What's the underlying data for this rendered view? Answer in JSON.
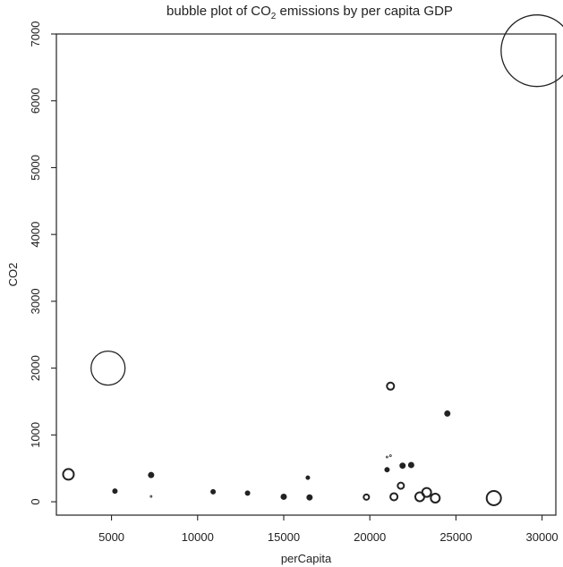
{
  "chart_data": {
    "type": "scatter",
    "title_parts": [
      "bubble plot of CO",
      "2",
      " emissions by per capita GDP"
    ],
    "xlabel": "perCapita",
    "ylabel": "CO2",
    "xlim": [
      1800,
      30800
    ],
    "ylim": [
      -200,
      7000
    ],
    "x_ticks": [
      5000,
      10000,
      15000,
      20000,
      25000,
      30000
    ],
    "y_ticks": [
      0,
      1000,
      2000,
      3000,
      4000,
      5000,
      6000,
      7000
    ],
    "grid": false,
    "legend": "none",
    "points": [
      {
        "x": 2500,
        "y": 410,
        "r": 6
      },
      {
        "x": 4800,
        "y": 2000,
        "r": 19
      },
      {
        "x": 5200,
        "y": 160,
        "r": 2
      },
      {
        "x": 7300,
        "y": 400,
        "r": 2.5
      },
      {
        "x": 7300,
        "y": 80,
        "r": 1
      },
      {
        "x": 10900,
        "y": 150,
        "r": 2
      },
      {
        "x": 12900,
        "y": 130,
        "r": 2
      },
      {
        "x": 15000,
        "y": 75,
        "r": 2.5
      },
      {
        "x": 16400,
        "y": 360,
        "r": 1.5
      },
      {
        "x": 16500,
        "y": 65,
        "r": 2.5
      },
      {
        "x": 19800,
        "y": 70,
        "r": 3
      },
      {
        "x": 21000,
        "y": 480,
        "r": 2
      },
      {
        "x": 21000,
        "y": 670,
        "r": 1
      },
      {
        "x": 21200,
        "y": 690,
        "r": 1
      },
      {
        "x": 21200,
        "y": 1730,
        "r": 4
      },
      {
        "x": 21400,
        "y": 75,
        "r": 4
      },
      {
        "x": 21800,
        "y": 240,
        "r": 3.5
      },
      {
        "x": 21900,
        "y": 540,
        "r": 2.5
      },
      {
        "x": 22400,
        "y": 550,
        "r": 2.5
      },
      {
        "x": 22900,
        "y": 75,
        "r": 5
      },
      {
        "x": 23300,
        "y": 140,
        "r": 5
      },
      {
        "x": 23800,
        "y": 55,
        "r": 5
      },
      {
        "x": 24500,
        "y": 1320,
        "r": 2.5
      },
      {
        "x": 27200,
        "y": 55,
        "r": 8
      },
      {
        "x": 29700,
        "y": 6750,
        "r": 40
      }
    ]
  }
}
